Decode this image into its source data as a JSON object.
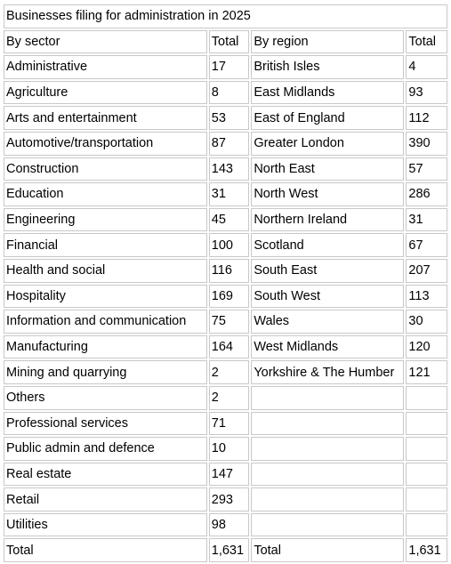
{
  "table": {
    "title": "Businesses filing for administration in 2025",
    "headers": {
      "sector": "By sector",
      "sector_total": "Total",
      "region": "By region",
      "region_total": "Total"
    },
    "rows": [
      {
        "sector": "Administrative",
        "sector_total": "17",
        "region": "British Isles",
        "region_total": "4"
      },
      {
        "sector": "Agriculture",
        "sector_total": "8",
        "region": "East Midlands",
        "region_total": "93"
      },
      {
        "sector": "Arts and entertainment",
        "sector_total": "53",
        "region": "East of England",
        "region_total": "112"
      },
      {
        "sector": "Automotive/transportation",
        "sector_total": "87",
        "region": "Greater London",
        "region_total": "390"
      },
      {
        "sector": "Construction",
        "sector_total": "143",
        "region": "North East",
        "region_total": "57"
      },
      {
        "sector": "Education",
        "sector_total": "31",
        "region": "North West",
        "region_total": "286"
      },
      {
        "sector": "Engineering",
        "sector_total": "45",
        "region": "Northern Ireland",
        "region_total": "31"
      },
      {
        "sector": "Financial",
        "sector_total": "100",
        "region": "Scotland",
        "region_total": "67"
      },
      {
        "sector": "Health and social",
        "sector_total": "116",
        "region": "South East",
        "region_total": "207"
      },
      {
        "sector": "Hospitality",
        "sector_total": "169",
        "region": "South West",
        "region_total": "113"
      },
      {
        "sector": "Information and communication",
        "sector_total": "75",
        "region": "Wales",
        "region_total": "30"
      },
      {
        "sector": "Manufacturing",
        "sector_total": "164",
        "region": "West Midlands",
        "region_total": "120"
      },
      {
        "sector": "Mining and quarrying",
        "sector_total": "2",
        "region": "Yorkshire & The Humber",
        "region_total": "121"
      },
      {
        "sector": "Others",
        "sector_total": "2",
        "region": "",
        "region_total": ""
      },
      {
        "sector": "Professional services",
        "sector_total": "71",
        "region": "",
        "region_total": ""
      },
      {
        "sector": "Public admin and defence",
        "sector_total": "10",
        "region": "",
        "region_total": ""
      },
      {
        "sector": "Real estate",
        "sector_total": "147",
        "region": "",
        "region_total": ""
      },
      {
        "sector": "Retail",
        "sector_total": "293",
        "region": "",
        "region_total": ""
      },
      {
        "sector": "Utilities",
        "sector_total": "98",
        "region": "",
        "region_total": ""
      }
    ],
    "totals": {
      "sector_label": "Total",
      "sector_total": "1,631",
      "region_label": "Total",
      "region_total": "1,631"
    }
  }
}
